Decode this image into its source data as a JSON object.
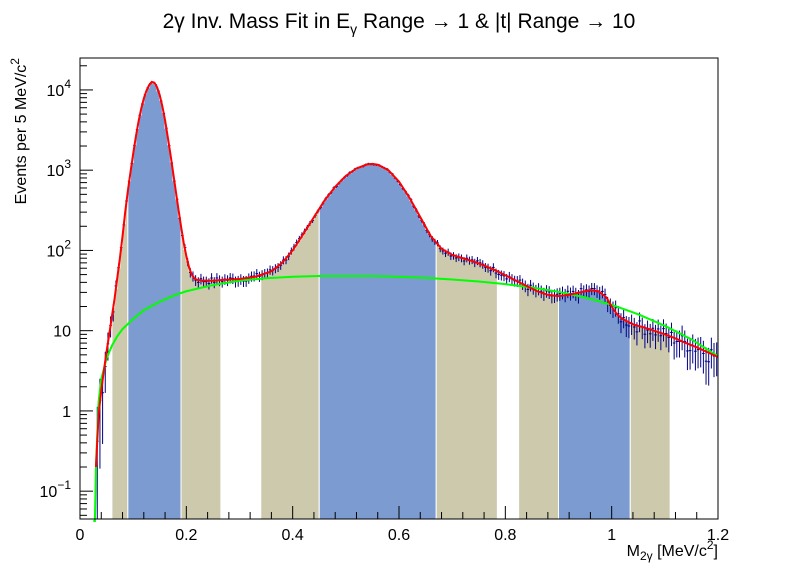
{
  "chart_data": {
    "type": "histogram",
    "title": "2γ Inv. Mass Fit in E_γ Range → 1 & |t| Range → 10",
    "title_parts": {
      "prefix": "2γ Inv. Mass Fit in E",
      "subscript": "γ",
      "suffix": " Range → 1 & |t| Range → 10"
    },
    "xlabel": "M_2γ [MeV/c^2]",
    "xlabel_parts": {
      "main": "M",
      "subscript": "2γ",
      "unit": " [MeV/c",
      "unit_sup": "2",
      "unit_close": "]"
    },
    "ylabel": "Events per 5 MeV/c^2",
    "ylabel_parts": {
      "main": "Events per 5 MeV/c",
      "sup": "2"
    },
    "xlim": [
      0,
      1.2
    ],
    "ylim": [
      0.045,
      25000
    ],
    "yscale": "log",
    "x_ticks": [
      {
        "value": 0,
        "label": "0"
      },
      {
        "value": 0.2,
        "label": "0.2"
      },
      {
        "value": 0.4,
        "label": "0.4"
      },
      {
        "value": 0.6,
        "label": "0.6"
      },
      {
        "value": 0.8,
        "label": "0.8"
      },
      {
        "value": 1.0,
        "label": "1"
      },
      {
        "value": 1.2,
        "label": "1.2"
      }
    ],
    "y_ticks": [
      {
        "value": 0.1,
        "base": "10",
        "exp": "−1"
      },
      {
        "value": 1,
        "base": "1",
        "exp": ""
      },
      {
        "value": 10,
        "base": "10",
        "exp": ""
      },
      {
        "value": 100,
        "base": "10",
        "exp": "2"
      },
      {
        "value": 1000,
        "base": "10",
        "exp": "3"
      },
      {
        "value": 10000,
        "base": "10",
        "exp": "4"
      }
    ],
    "bin_width": 0.005,
    "shaded_regions": [
      {
        "x0": 0.06,
        "x1": 0.09,
        "color": "#cdc9ad"
      },
      {
        "x0": 0.09,
        "x1": 0.19,
        "color": "#7b9bd1"
      },
      {
        "x0": 0.19,
        "x1": 0.265,
        "color": "#cdc9ad"
      },
      {
        "x0": 0.34,
        "x1": 0.45,
        "color": "#cdc9ad"
      },
      {
        "x0": 0.45,
        "x1": 0.67,
        "color": "#7b9bd1"
      },
      {
        "x0": 0.67,
        "x1": 0.785,
        "color": "#cdc9ad"
      },
      {
        "x0": 0.825,
        "x1": 0.9,
        "color": "#cdc9ad"
      },
      {
        "x0": 0.9,
        "x1": 1.035,
        "color": "#7b9bd1"
      },
      {
        "x0": 1.035,
        "x1": 1.11,
        "color": "#cdc9ad"
      }
    ],
    "total_fit_points": [
      [
        0.03,
        0.2
      ],
      [
        0.035,
        0.9
      ],
      [
        0.04,
        1.8
      ],
      [
        0.045,
        3.2
      ],
      [
        0.05,
        5.5
      ],
      [
        0.055,
        9.0
      ],
      [
        0.06,
        15
      ],
      [
        0.065,
        25
      ],
      [
        0.07,
        45
      ],
      [
        0.075,
        80
      ],
      [
        0.08,
        150
      ],
      [
        0.085,
        300
      ],
      [
        0.09,
        550
      ],
      [
        0.095,
        950
      ],
      [
        0.1,
        1600
      ],
      [
        0.105,
        2600
      ],
      [
        0.11,
        4000
      ],
      [
        0.115,
        5800
      ],
      [
        0.12,
        7800
      ],
      [
        0.125,
        9800
      ],
      [
        0.13,
        11500
      ],
      [
        0.135,
        12600
      ],
      [
        0.14,
        12300
      ],
      [
        0.145,
        10800
      ],
      [
        0.15,
        8600
      ],
      [
        0.155,
        6200
      ],
      [
        0.16,
        4200
      ],
      [
        0.165,
        2600
      ],
      [
        0.17,
        1600
      ],
      [
        0.175,
        950
      ],
      [
        0.18,
        560
      ],
      [
        0.185,
        330
      ],
      [
        0.19,
        200
      ],
      [
        0.195,
        125
      ],
      [
        0.2,
        85
      ],
      [
        0.205,
        62
      ],
      [
        0.21,
        50
      ],
      [
        0.215,
        45
      ],
      [
        0.22,
        43
      ],
      [
        0.23,
        42
      ],
      [
        0.25,
        42
      ],
      [
        0.27,
        43
      ],
      [
        0.3,
        44
      ],
      [
        0.33,
        47
      ],
      [
        0.36,
        55
      ],
      [
        0.38,
        70
      ],
      [
        0.4,
        100
      ],
      [
        0.42,
        160
      ],
      [
        0.44,
        260
      ],
      [
        0.46,
        420
      ],
      [
        0.48,
        620
      ],
      [
        0.5,
        850
      ],
      [
        0.52,
        1050
      ],
      [
        0.54,
        1180
      ],
      [
        0.55,
        1200
      ],
      [
        0.56,
        1170
      ],
      [
        0.58,
        1000
      ],
      [
        0.6,
        720
      ],
      [
        0.62,
        450
      ],
      [
        0.64,
        260
      ],
      [
        0.66,
        150
      ],
      [
        0.68,
        105
      ],
      [
        0.7,
        88
      ],
      [
        0.72,
        80
      ],
      [
        0.74,
        73
      ],
      [
        0.76,
        65
      ],
      [
        0.78,
        57
      ],
      [
        0.8,
        49
      ],
      [
        0.82,
        42
      ],
      [
        0.84,
        36
      ],
      [
        0.86,
        31
      ],
      [
        0.88,
        28
      ],
      [
        0.9,
        27
      ],
      [
        0.92,
        28
      ],
      [
        0.94,
        30
      ],
      [
        0.96,
        32
      ],
      [
        0.975,
        31
      ],
      [
        0.99,
        26
      ],
      [
        1.0,
        20
      ],
      [
        1.01,
        16
      ],
      [
        1.02,
        14
      ],
      [
        1.04,
        12
      ],
      [
        1.06,
        11
      ],
      [
        1.08,
        10
      ],
      [
        1.1,
        9
      ],
      [
        1.12,
        8
      ],
      [
        1.14,
        7
      ],
      [
        1.16,
        6.2
      ],
      [
        1.18,
        5.4
      ],
      [
        1.2,
        4.7
      ]
    ],
    "background_fit_points": [
      [
        0.025,
        0.0001
      ],
      [
        0.028,
        0.04
      ],
      [
        0.03,
        0.2
      ],
      [
        0.035,
        1.3
      ],
      [
        0.04,
        2.5
      ],
      [
        0.05,
        4.5
      ],
      [
        0.06,
        6.5
      ],
      [
        0.07,
        8.5
      ],
      [
        0.08,
        10.5
      ],
      [
        0.1,
        14
      ],
      [
        0.12,
        18
      ],
      [
        0.15,
        23
      ],
      [
        0.18,
        28
      ],
      [
        0.2,
        31
      ],
      [
        0.25,
        37
      ],
      [
        0.3,
        42
      ],
      [
        0.35,
        45
      ],
      [
        0.4,
        47
      ],
      [
        0.45,
        48
      ],
      [
        0.5,
        48
      ],
      [
        0.55,
        48
      ],
      [
        0.6,
        47
      ],
      [
        0.65,
        45.5
      ],
      [
        0.7,
        43.5
      ],
      [
        0.75,
        41
      ],
      [
        0.8,
        38
      ],
      [
        0.85,
        34.5
      ],
      [
        0.9,
        30.5
      ],
      [
        0.95,
        26
      ],
      [
        1.0,
        21
      ],
      [
        1.05,
        16
      ],
      [
        1.1,
        11.5
      ],
      [
        1.15,
        7.8
      ],
      [
        1.2,
        4.8
      ]
    ],
    "colors": {
      "total_fit": "#ff0000",
      "background_fit": "#00ff00",
      "data_points": "#000080",
      "signal_fill": "#7b9bd1",
      "sideband_fill": "#cdc9ad"
    }
  }
}
